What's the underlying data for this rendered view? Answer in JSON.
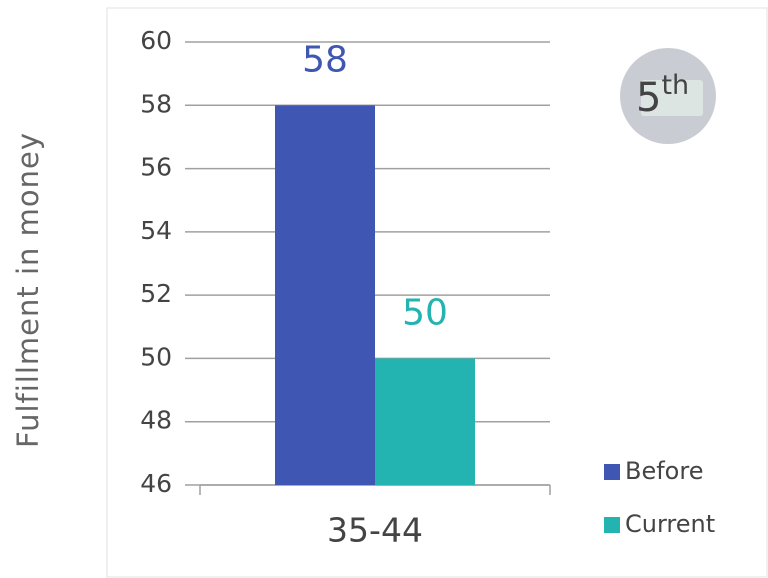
{
  "chart_data": {
    "type": "bar",
    "y_label": "Fulfillment in money",
    "categories": [
      "35-44"
    ],
    "series": [
      {
        "name": "Before",
        "color": "#3f57b3",
        "values": [
          58
        ]
      },
      {
        "name": "Current",
        "color": "#23b3b0",
        "values": [
          50
        ]
      }
    ],
    "ylim": [
      46,
      60
    ],
    "yticks": [
      46,
      48,
      50,
      52,
      54,
      56,
      58,
      60
    ],
    "grid": true,
    "legend": "bottom-right",
    "badge": {
      "number": "5",
      "suffix": "th"
    }
  }
}
